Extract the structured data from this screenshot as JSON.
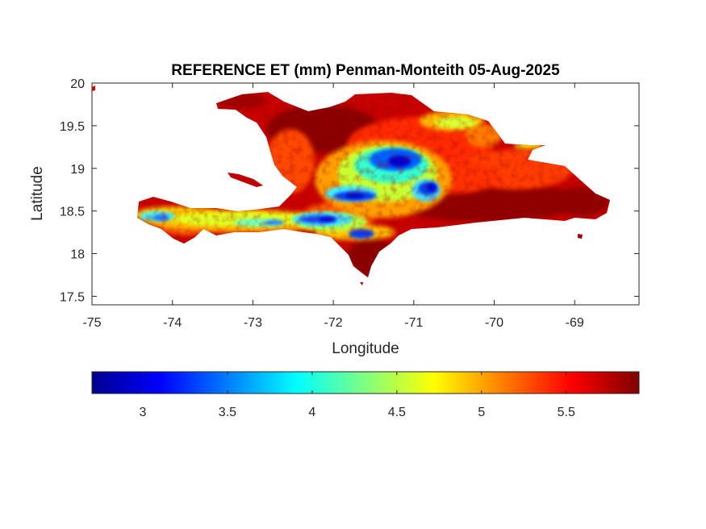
{
  "map": {
    "title": "REFERENCE ET (mm) Penman-Monteith 05-Aug-2025",
    "xlabel": "Longitude",
    "ylabel": "Latitude",
    "x_range": [
      -75,
      -68.2
    ],
    "y_range": [
      17.4,
      20
    ],
    "x_ticks": [
      -75,
      -74,
      -73,
      -72,
      -71,
      -70,
      -69
    ],
    "y_ticks": [
      17.5,
      18,
      18.5,
      19,
      19.5,
      20
    ],
    "x_tick_labels": [
      "-75",
      "-74",
      "-73",
      "-72",
      "-71",
      "-70",
      "-69"
    ],
    "y_tick_labels": [
      "17.5",
      "18",
      "18.5",
      "19",
      "19.5",
      "20"
    ],
    "colormap": "jet",
    "color_low": "#00008f",
    "color_high": "#800000"
  },
  "colorbar": {
    "range": [
      2.7,
      5.93
    ],
    "ticks": [
      3,
      3.5,
      4,
      4.5,
      5,
      5.5
    ],
    "tick_labels": [
      "3",
      "3.5",
      "4",
      "4.5",
      "5",
      "5.5"
    ],
    "orientation": "horizontal",
    "placement": "below"
  }
}
